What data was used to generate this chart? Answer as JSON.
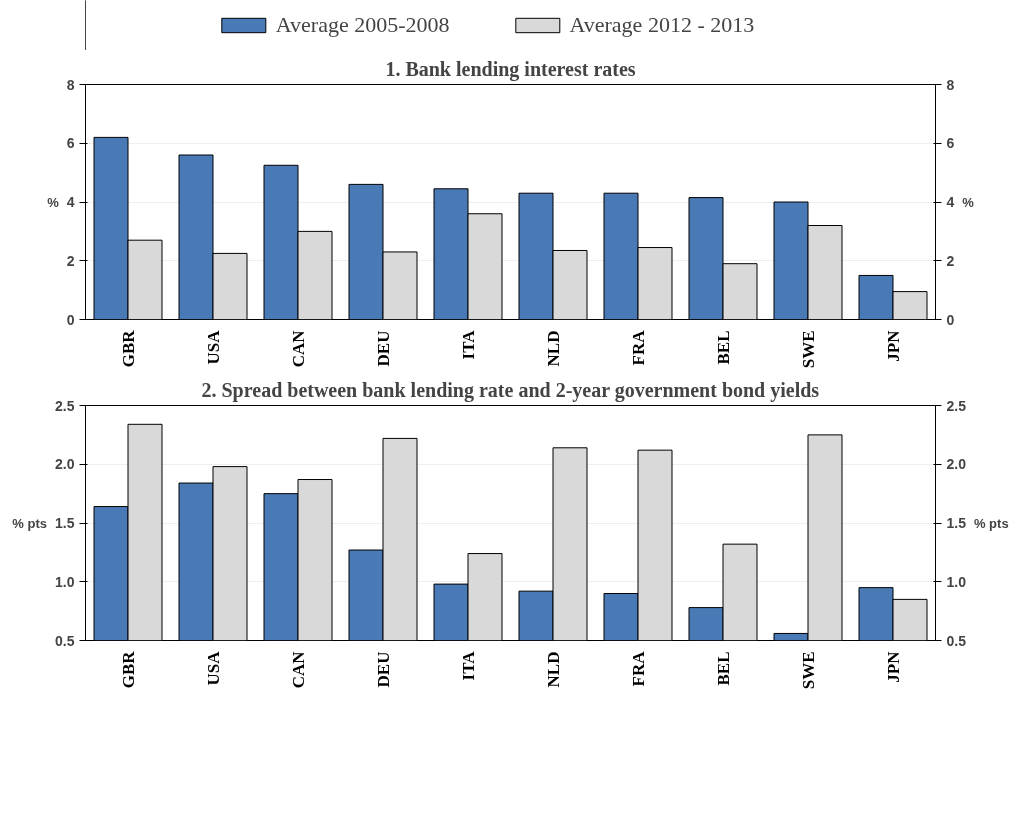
{
  "chart_data": [
    {
      "type": "bar",
      "title": "1. Bank lending interest rates",
      "ylabel": "%",
      "y2label": "%",
      "categories": [
        "GBR",
        "USA",
        "CAN",
        "DEU",
        "ITA",
        "NLD",
        "FRA",
        "BEL",
        "SWE",
        "JPN"
      ],
      "series": [
        {
          "name": "Average 2005-2008",
          "color": "#4a7ab5",
          "values": [
            6.2,
            5.6,
            5.25,
            4.6,
            4.45,
            4.3,
            4.3,
            4.15,
            4.0,
            1.5
          ]
        },
        {
          "name": "Average 2012 - 2013",
          "color": "#d9d9d9",
          "values": [
            2.7,
            2.25,
            3.0,
            2.3,
            3.6,
            2.35,
            2.45,
            1.9,
            3.2,
            0.95
          ]
        }
      ],
      "ylim": [
        0,
        8
      ],
      "yticks": [
        0,
        2,
        4,
        6,
        8
      ],
      "y2lim": [
        0,
        8
      ],
      "y2ticks": [
        0,
        2,
        4,
        6,
        8
      ],
      "grid": "y",
      "legend": "top"
    },
    {
      "type": "bar",
      "title": "2. Spread between bank lending rate and 2-year government bond yields",
      "ylabel": "% pts",
      "y2label": "% pts",
      "categories": [
        "GBR",
        "USA",
        "CAN",
        "DEU",
        "ITA",
        "NLD",
        "FRA",
        "BEL",
        "SWE",
        "JPN"
      ],
      "series": [
        {
          "color": "#4a7ab5",
          "values": [
            1.64,
            1.84,
            1.75,
            1.27,
            0.98,
            0.92,
            0.9,
            0.78,
            0.56,
            0.95
          ]
        },
        {
          "color": "#d9d9d9",
          "values": [
            2.34,
            1.98,
            1.87,
            2.22,
            1.24,
            2.14,
            2.12,
            1.32,
            2.25,
            0.85
          ]
        }
      ],
      "ylim": [
        0.5,
        2.5
      ],
      "yticks": [
        {
          "value": 0.5,
          "label": "0.5"
        },
        {
          "value": 1.0,
          "label": "1.0"
        },
        {
          "value": 1.5,
          "label": "1.5"
        },
        {
          "value": 2.0,
          "label": "2.0"
        },
        {
          "value": 2.5,
          "label": "2.5"
        }
      ],
      "y2lim": [
        0.5,
        2.5
      ],
      "y2ticks": [
        {
          "value": 0.5,
          "label": "0.5"
        },
        {
          "value": 1.0,
          "label": "1.0"
        },
        {
          "value": 1.5,
          "label": "1.5"
        },
        {
          "value": 2.0,
          "label": "2.0"
        },
        {
          "value": 2.5,
          "label": "2.5"
        }
      ],
      "grid": "y"
    }
  ]
}
